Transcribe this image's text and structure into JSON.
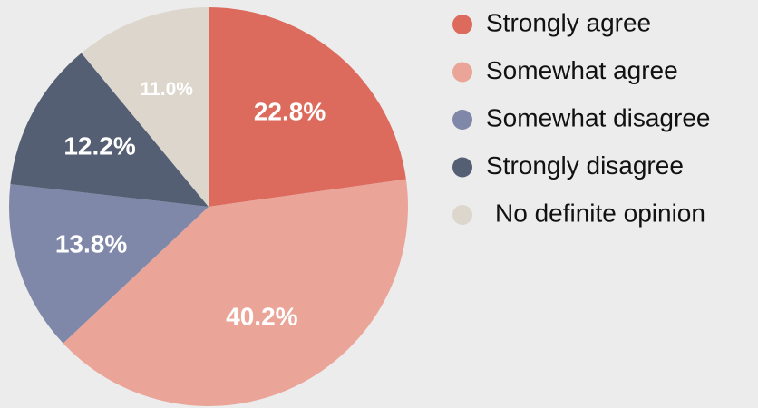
{
  "chart_data": {
    "type": "pie",
    "categories": [
      "Strongly agree",
      "Somewhat agree",
      "Somewhat disagree",
      "Strongly disagree",
      "No definite opinion"
    ],
    "values": [
      22.8,
      40.2,
      13.8,
      12.2,
      11.0
    ],
    "value_labels": [
      "22.8%",
      "40.2%",
      "13.8%",
      "12.2%",
      "11.0%"
    ],
    "colors": [
      "#dc6b5e",
      "#eaa498",
      "#7f88a8",
      "#555f74",
      "#dcd6cc"
    ],
    "legend": "right"
  }
}
